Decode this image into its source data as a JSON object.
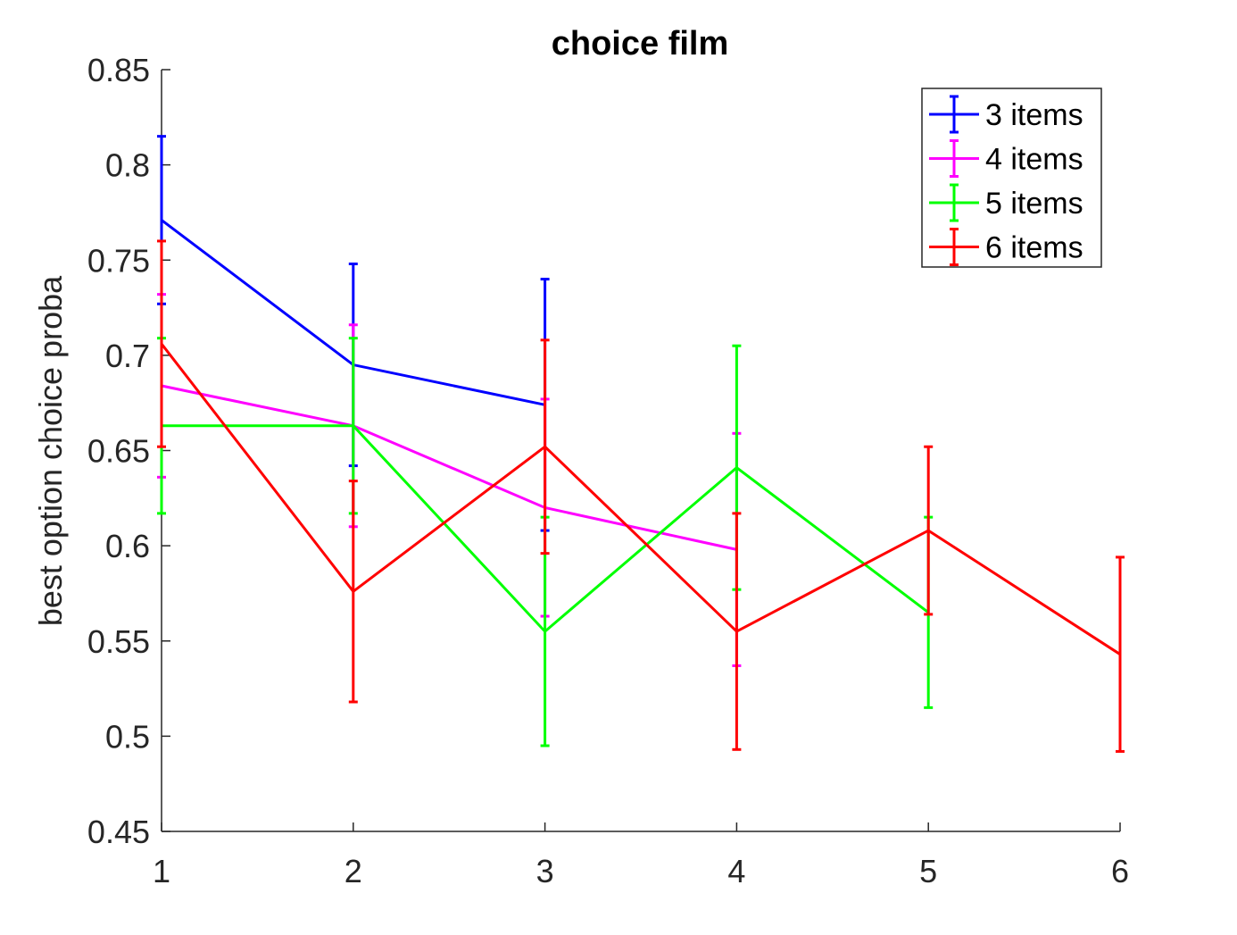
{
  "chart_data": {
    "type": "line",
    "title": "choice film",
    "xlabel": "",
    "ylabel": "best option choice proba",
    "x_ticks": [
      "1",
      "2",
      "3",
      "4",
      "5",
      "6"
    ],
    "y_ticks": [
      "0.45",
      "0.5",
      "0.55",
      "0.6",
      "0.65",
      "0.7",
      "0.75",
      "0.8",
      "0.85"
    ],
    "xlim": [
      1,
      6
    ],
    "ylim": [
      0.45,
      0.85
    ],
    "grid": false,
    "legend_position": "top-right",
    "error_bars": true,
    "series": [
      {
        "name": "3 items",
        "color": "#0000ff",
        "x": [
          1,
          2,
          3
        ],
        "y": [
          0.771,
          0.695,
          0.674
        ],
        "err": [
          0.044,
          0.053,
          0.066
        ]
      },
      {
        "name": "4 items",
        "color": "#ff00ff",
        "x": [
          1,
          2,
          3,
          4
        ],
        "y": [
          0.684,
          0.663,
          0.62,
          0.598
        ],
        "err": [
          0.048,
          0.053,
          0.057,
          0.061
        ]
      },
      {
        "name": "5 items",
        "color": "#00ff00",
        "x": [
          1,
          2,
          3,
          4,
          5
        ],
        "y": [
          0.663,
          0.663,
          0.555,
          0.641,
          0.565
        ],
        "err": [
          0.046,
          0.046,
          0.06,
          0.064,
          0.05
        ]
      },
      {
        "name": "6 items",
        "color": "#ff0000",
        "x": [
          1,
          2,
          3,
          4,
          5,
          6
        ],
        "y": [
          0.706,
          0.576,
          0.652,
          0.555,
          0.608,
          0.543
        ],
        "err": [
          0.054,
          0.058,
          0.056,
          0.062,
          0.044,
          0.051
        ]
      }
    ]
  }
}
